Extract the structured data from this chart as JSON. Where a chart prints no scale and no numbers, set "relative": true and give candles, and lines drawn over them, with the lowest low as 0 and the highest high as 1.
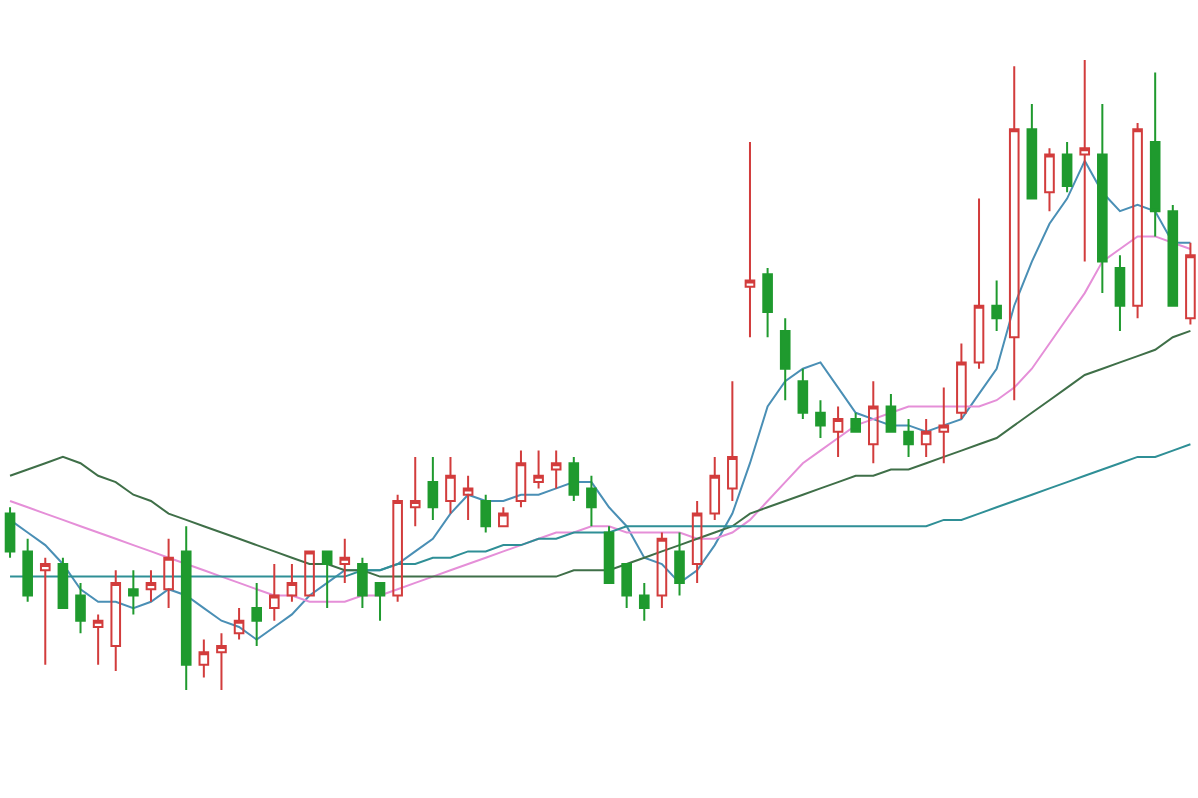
{
  "chart_data": {
    "type": "candlestick",
    "relative": true,
    "categories": [
      null,
      null,
      null,
      null,
      null,
      null,
      null,
      null,
      null,
      null,
      null,
      null,
      null,
      null,
      null,
      null,
      null,
      null,
      null,
      null,
      null,
      null,
      null,
      null,
      null,
      null,
      null,
      null,
      null,
      null,
      null,
      null,
      null,
      null,
      null,
      null,
      null,
      null,
      null,
      null,
      null,
      null,
      null,
      null,
      null,
      null,
      null,
      null,
      null,
      null,
      null,
      null,
      null,
      null,
      null,
      null,
      null,
      null,
      null,
      null,
      null,
      null,
      null,
      null,
      null,
      null,
      null,
      null
    ],
    "ohlc": [
      [
        0.28,
        0.29,
        0.21,
        0.22
      ],
      [
        0.22,
        0.24,
        0.14,
        0.15
      ],
      [
        0.19,
        0.21,
        0.04,
        0.2
      ],
      [
        0.2,
        0.21,
        0.13,
        0.13
      ],
      [
        0.15,
        0.17,
        0.09,
        0.11
      ],
      [
        0.1,
        0.12,
        0.04,
        0.11
      ],
      [
        0.07,
        0.19,
        0.03,
        0.17
      ],
      [
        0.16,
        0.19,
        0.12,
        0.15
      ],
      [
        0.16,
        0.19,
        0.14,
        0.17
      ],
      [
        0.16,
        0.24,
        0.13,
        0.21
      ],
      [
        0.22,
        0.26,
        0.0,
        0.04
      ],
      [
        0.04,
        0.08,
        0.02,
        0.06
      ],
      [
        0.06,
        0.09,
        0.0,
        0.07
      ],
      [
        0.09,
        0.13,
        0.08,
        0.11
      ],
      [
        0.13,
        0.17,
        0.07,
        0.11
      ],
      [
        0.13,
        0.2,
        0.11,
        0.15
      ],
      [
        0.15,
        0.2,
        0.14,
        0.17
      ],
      [
        0.15,
        0.22,
        0.15,
        0.22
      ],
      [
        0.22,
        0.22,
        0.13,
        0.2
      ],
      [
        0.2,
        0.24,
        0.17,
        0.21
      ],
      [
        0.2,
        0.21,
        0.13,
        0.15
      ],
      [
        0.17,
        0.17,
        0.11,
        0.15
      ],
      [
        0.15,
        0.31,
        0.14,
        0.3
      ],
      [
        0.29,
        0.37,
        0.26,
        0.3
      ],
      [
        0.33,
        0.37,
        0.27,
        0.29
      ],
      [
        0.3,
        0.37,
        0.28,
        0.34
      ],
      [
        0.31,
        0.34,
        0.27,
        0.32
      ],
      [
        0.3,
        0.31,
        0.25,
        0.26
      ],
      [
        0.26,
        0.29,
        0.26,
        0.28
      ],
      [
        0.3,
        0.38,
        0.29,
        0.36
      ],
      [
        0.33,
        0.38,
        0.32,
        0.34
      ],
      [
        0.35,
        0.38,
        0.32,
        0.36
      ],
      [
        0.36,
        0.37,
        0.3,
        0.31
      ],
      [
        0.32,
        0.34,
        0.26,
        0.29
      ],
      [
        0.25,
        0.26,
        0.17,
        0.17
      ],
      [
        0.2,
        0.2,
        0.13,
        0.15
      ],
      [
        0.15,
        0.17,
        0.11,
        0.13
      ],
      [
        0.15,
        0.25,
        0.13,
        0.24
      ],
      [
        0.22,
        0.25,
        0.15,
        0.17
      ],
      [
        0.2,
        0.3,
        0.17,
        0.28
      ],
      [
        0.28,
        0.37,
        0.27,
        0.34
      ],
      [
        0.32,
        0.49,
        0.3,
        0.37
      ],
      [
        0.64,
        0.87,
        0.56,
        0.65
      ],
      [
        0.66,
        0.67,
        0.56,
        0.6
      ],
      [
        0.57,
        0.59,
        0.46,
        0.51
      ],
      [
        0.49,
        0.51,
        0.43,
        0.44
      ],
      [
        0.44,
        0.46,
        0.4,
        0.42
      ],
      [
        0.41,
        0.45,
        0.37,
        0.43
      ],
      [
        0.43,
        0.44,
        0.41,
        0.41
      ],
      [
        0.39,
        0.49,
        0.36,
        0.45
      ],
      [
        0.45,
        0.47,
        0.41,
        0.41
      ],
      [
        0.41,
        0.43,
        0.37,
        0.39
      ],
      [
        0.39,
        0.43,
        0.37,
        0.41
      ],
      [
        0.41,
        0.48,
        0.36,
        0.42
      ],
      [
        0.44,
        0.55,
        0.43,
        0.52
      ],
      [
        0.52,
        0.78,
        0.51,
        0.61
      ],
      [
        0.61,
        0.65,
        0.57,
        0.59
      ],
      [
        0.56,
        0.99,
        0.46,
        0.89
      ],
      [
        0.89,
        0.93,
        0.78,
        0.78
      ],
      [
        0.79,
        0.86,
        0.76,
        0.85
      ],
      [
        0.85,
        0.87,
        0.79,
        0.8
      ],
      [
        0.85,
        1.0,
        0.68,
        0.86
      ],
      [
        0.85,
        0.93,
        0.63,
        0.68
      ],
      [
        0.67,
        0.69,
        0.57,
        0.61
      ],
      [
        0.61,
        0.9,
        0.59,
        0.89
      ],
      [
        0.87,
        0.98,
        0.72,
        0.76
      ],
      [
        0.76,
        0.77,
        0.61,
        0.61
      ],
      [
        0.59,
        0.71,
        0.58,
        0.69
      ]
    ],
    "colors": [
      "#1f9a2e",
      "#1f9a2e",
      "#d23c3c",
      "#1f9a2e",
      "#1f9a2e",
      "#d23c3c",
      "#d23c3c",
      "#1f9a2e",
      "#d23c3c",
      "#d23c3c",
      "#1f9a2e",
      "#d23c3c",
      "#d23c3c",
      "#d23c3c",
      "#1f9a2e",
      "#d23c3c",
      "#d23c3c",
      "#d23c3c",
      "#1f9a2e",
      "#d23c3c",
      "#1f9a2e",
      "#1f9a2e",
      "#d23c3c",
      "#d23c3c",
      "#1f9a2e",
      "#d23c3c",
      "#d23c3c",
      "#1f9a2e",
      "#d23c3c",
      "#d23c3c",
      "#d23c3c",
      "#d23c3c",
      "#1f9a2e",
      "#1f9a2e",
      "#1f9a2e",
      "#1f9a2e",
      "#1f9a2e",
      "#d23c3c",
      "#1f9a2e",
      "#d23c3c",
      "#d23c3c",
      "#d23c3c",
      "#d23c3c",
      "#1f9a2e",
      "#1f9a2e",
      "#1f9a2e",
      "#1f9a2e",
      "#d23c3c",
      "#1f9a2e",
      "#d23c3c",
      "#1f9a2e",
      "#1f9a2e",
      "#d23c3c",
      "#d23c3c",
      "#d23c3c",
      "#d23c3c",
      "#1f9a2e",
      "#d23c3c",
      "#1f9a2e",
      "#d23c3c",
      "#1f9a2e",
      "#d23c3c",
      "#1f9a2e",
      "#1f9a2e",
      "#d23c3c",
      "#1f9a2e",
      "#1f9a2e",
      "#d23c3c"
    ],
    "series": [
      {
        "type": "line",
        "color": "#4a8fb5",
        "values": [
          0.27,
          0.25,
          0.23,
          0.2,
          0.16,
          0.14,
          0.14,
          0.13,
          0.14,
          0.16,
          0.15,
          0.13,
          0.11,
          0.1,
          0.08,
          0.1,
          0.12,
          0.15,
          0.17,
          0.19,
          0.19,
          0.19,
          0.2,
          0.22,
          0.24,
          0.28,
          0.31,
          0.3,
          0.3,
          0.31,
          0.31,
          0.32,
          0.33,
          0.33,
          0.29,
          0.26,
          0.21,
          0.2,
          0.17,
          0.19,
          0.23,
          0.28,
          0.36,
          0.45,
          0.49,
          0.51,
          0.52,
          0.48,
          0.44,
          0.43,
          0.42,
          0.42,
          0.41,
          0.42,
          0.43,
          0.47,
          0.51,
          0.61,
          0.68,
          0.74,
          0.78,
          0.84,
          0.79,
          0.76,
          0.77,
          0.76,
          0.71,
          0.71
        ]
      },
      {
        "type": "line",
        "color": "#e58fd8",
        "values": [
          0.3,
          0.29,
          0.28,
          0.27,
          0.26,
          0.25,
          0.24,
          0.23,
          0.22,
          0.21,
          0.2,
          0.19,
          0.18,
          0.17,
          0.16,
          0.15,
          0.15,
          0.14,
          0.14,
          0.14,
          0.15,
          0.15,
          0.16,
          0.17,
          0.18,
          0.19,
          0.2,
          0.21,
          0.22,
          0.23,
          0.24,
          0.25,
          0.25,
          0.26,
          0.26,
          0.25,
          0.25,
          0.25,
          0.25,
          0.24,
          0.24,
          0.25,
          0.27,
          0.3,
          0.33,
          0.36,
          0.38,
          0.4,
          0.42,
          0.43,
          0.44,
          0.45,
          0.45,
          0.45,
          0.45,
          0.45,
          0.46,
          0.48,
          0.51,
          0.55,
          0.59,
          0.63,
          0.68,
          0.7,
          0.72,
          0.72,
          0.71,
          0.7
        ]
      },
      {
        "type": "line",
        "color": "#3f6f48",
        "values": [
          0.34,
          0.35,
          0.36,
          0.37,
          0.36,
          0.34,
          0.33,
          0.31,
          0.3,
          0.28,
          0.27,
          0.26,
          0.25,
          0.24,
          0.23,
          0.22,
          0.21,
          0.2,
          0.2,
          0.19,
          0.19,
          0.18,
          0.18,
          0.18,
          0.18,
          0.18,
          0.18,
          0.18,
          0.18,
          0.18,
          0.18,
          0.18,
          0.19,
          0.19,
          0.19,
          0.2,
          0.21,
          0.22,
          0.23,
          0.24,
          0.25,
          0.26,
          0.28,
          0.29,
          0.3,
          0.31,
          0.32,
          0.33,
          0.34,
          0.34,
          0.35,
          0.35,
          0.36,
          0.37,
          0.38,
          0.39,
          0.4,
          0.42,
          0.44,
          0.46,
          0.48,
          0.5,
          0.51,
          0.52,
          0.53,
          0.54,
          0.56,
          0.57
        ]
      },
      {
        "type": "line",
        "color": "#2f8f96",
        "values": [
          0.18,
          0.18,
          0.18,
          0.18,
          0.18,
          0.18,
          0.18,
          0.18,
          0.18,
          0.18,
          0.18,
          0.18,
          0.18,
          0.18,
          0.18,
          0.18,
          0.18,
          0.18,
          0.18,
          0.18,
          0.19,
          0.19,
          0.2,
          0.2,
          0.21,
          0.21,
          0.22,
          0.22,
          0.23,
          0.23,
          0.24,
          0.24,
          0.25,
          0.25,
          0.25,
          0.26,
          0.26,
          0.26,
          0.26,
          0.26,
          0.26,
          0.26,
          0.26,
          0.26,
          0.26,
          0.26,
          0.26,
          0.26,
          0.26,
          0.26,
          0.26,
          0.26,
          0.26,
          0.27,
          0.27,
          0.28,
          0.29,
          0.3,
          0.31,
          0.32,
          0.33,
          0.34,
          0.35,
          0.36,
          0.37,
          0.37,
          0.38,
          0.39
        ]
      }
    ]
  }
}
